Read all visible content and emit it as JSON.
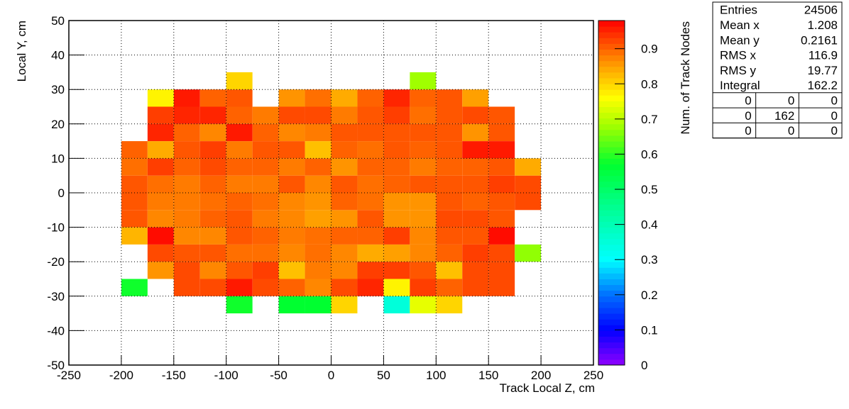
{
  "chart_data": {
    "type": "heatmap",
    "xlabel": "Track Local Z, cm",
    "ylabel": "Local Y, cm",
    "zlabel": "Num. of Track Nodes",
    "xlim": [
      -250,
      250
    ],
    "ylim": [
      -50,
      50
    ],
    "zlim": [
      0,
      0.98
    ],
    "xticks": [
      -250,
      -200,
      -150,
      -100,
      -50,
      0,
      50,
      100,
      150,
      200,
      250
    ],
    "yticks": [
      -50,
      -40,
      -30,
      -20,
      -10,
      0,
      10,
      20,
      30,
      40,
      50
    ],
    "zticks": [
      0,
      0.1,
      0.2,
      0.3,
      0.4,
      0.5,
      0.6,
      0.7,
      0.8,
      0.9
    ],
    "grid": true,
    "colorscale": [
      [
        0,
        "#9000ff"
      ],
      [
        0.1,
        "#0000ff"
      ],
      [
        0.2,
        "#0070ff"
      ],
      [
        0.3,
        "#00ffff"
      ],
      [
        0.45,
        "#00ff90"
      ],
      [
        0.57,
        "#00ff30"
      ],
      [
        0.68,
        "#a0ff00"
      ],
      [
        0.76,
        "#ffff00"
      ],
      [
        0.85,
        "#ffa000"
      ],
      [
        0.98,
        "#ff0000"
      ]
    ],
    "x_bins": [
      -200,
      -175,
      -150,
      -125,
      -100,
      -75,
      -50,
      -25,
      0,
      25,
      50,
      75,
      100,
      125,
      150,
      175,
      200
    ],
    "y_bins": [
      -35,
      -30,
      -25,
      -20,
      -15,
      -10,
      -5,
      0,
      5,
      10,
      15,
      20,
      25,
      30,
      35
    ],
    "z": [
      [
        null,
        null,
        null,
        null,
        0.58,
        null,
        0.57,
        0.57,
        0.8,
        null,
        0.35,
        0.74,
        0.8,
        null,
        null,
        null
      ],
      [
        0.58,
        null,
        0.92,
        0.92,
        0.96,
        0.92,
        0.9,
        0.87,
        0.92,
        0.95,
        0.77,
        0.93,
        0.9,
        0.92,
        0.92,
        null
      ],
      [
        null,
        0.86,
        0.92,
        0.87,
        0.91,
        0.93,
        0.82,
        0.88,
        0.87,
        0.93,
        0.93,
        0.91,
        0.82,
        0.92,
        0.92,
        null
      ],
      [
        null,
        0.92,
        0.91,
        0.91,
        0.89,
        0.89,
        0.87,
        0.89,
        0.87,
        0.84,
        0.85,
        0.87,
        0.9,
        0.93,
        0.92,
        0.67
      ],
      [
        0.83,
        0.97,
        0.87,
        0.87,
        0.91,
        0.9,
        0.88,
        0.89,
        0.9,
        0.9,
        0.93,
        0.87,
        0.91,
        0.91,
        0.97,
        null
      ],
      [
        0.91,
        0.87,
        0.88,
        0.9,
        0.91,
        0.88,
        0.87,
        0.85,
        0.86,
        0.91,
        0.86,
        0.86,
        0.92,
        0.92,
        0.91,
        null
      ],
      [
        0.91,
        0.88,
        0.88,
        0.89,
        0.9,
        0.89,
        0.87,
        0.86,
        0.9,
        0.89,
        0.86,
        0.86,
        0.91,
        0.9,
        0.91,
        0.92
      ],
      [
        0.91,
        0.89,
        0.88,
        0.9,
        0.88,
        0.88,
        0.91,
        0.87,
        0.91,
        0.89,
        0.9,
        0.91,
        0.91,
        0.91,
        0.93,
        0.92
      ],
      [
        0.89,
        0.93,
        0.9,
        0.92,
        0.9,
        0.9,
        0.88,
        0.9,
        0.86,
        0.9,
        0.9,
        0.88,
        0.9,
        0.9,
        0.91,
        0.84
      ],
      [
        0.9,
        0.84,
        0.91,
        0.93,
        0.88,
        0.91,
        0.91,
        0.82,
        0.9,
        0.89,
        0.91,
        0.9,
        0.91,
        0.96,
        0.96,
        null
      ],
      [
        null,
        0.95,
        0.9,
        0.87,
        0.96,
        0.9,
        0.87,
        0.88,
        0.91,
        0.91,
        0.91,
        0.91,
        0.91,
        0.86,
        0.91,
        null
      ],
      [
        null,
        0.93,
        0.95,
        0.95,
        0.9,
        0.88,
        0.92,
        0.92,
        0.88,
        0.91,
        0.93,
        0.89,
        0.91,
        0.92,
        0.91,
        null
      ],
      [
        null,
        0.77,
        0.96,
        0.9,
        0.91,
        null,
        0.86,
        0.89,
        0.84,
        0.9,
        0.95,
        0.9,
        0.91,
        0.85,
        null,
        null
      ],
      [
        null,
        null,
        null,
        null,
        0.8,
        null,
        null,
        null,
        null,
        null,
        null,
        0.68,
        null,
        null,
        null,
        null
      ]
    ],
    "stats": [
      [
        "Entries",
        24506
      ],
      [
        "Mean x",
        1.208
      ],
      [
        "Mean y",
        0.2161
      ],
      [
        "RMS x",
        116.9
      ],
      [
        "RMS y",
        19.77
      ],
      [
        "Integral",
        162.2
      ]
    ],
    "overflow": [
      [
        0,
        0,
        0
      ],
      [
        0,
        162,
        0
      ],
      [
        0,
        0,
        0
      ]
    ]
  }
}
